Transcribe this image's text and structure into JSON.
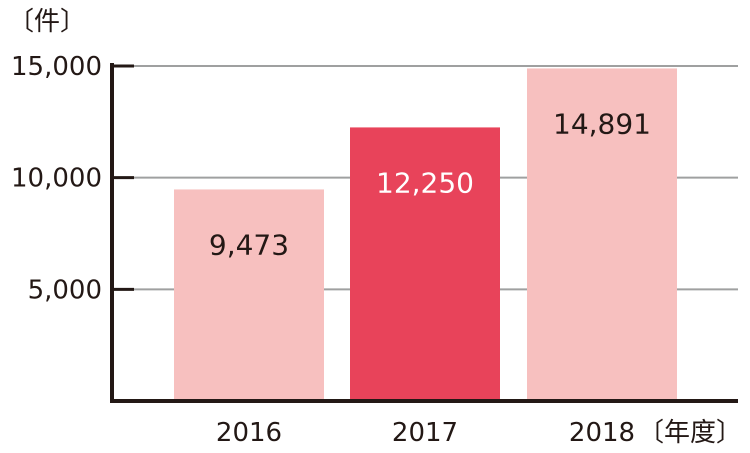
{
  "chart_data": {
    "type": "bar",
    "categories": [
      "2016",
      "2017",
      "2018"
    ],
    "values": [
      9473,
      12250,
      14891
    ],
    "value_labels": [
      "9,473",
      "12,250",
      "14,891"
    ],
    "y_ticks": [
      5000,
      10000,
      15000
    ],
    "y_tick_labels": [
      "5,000",
      "10,000",
      "15,000"
    ],
    "ylim": [
      0,
      15000
    ],
    "y_unit": "〔件〕",
    "x_unit": "〔年度〕",
    "grid": true,
    "highlight_index": 1,
    "colors": {
      "bar": "#f7c0bf",
      "bar_highlight": "#e8435a",
      "label": "#231815",
      "label_highlight": "#ffffff",
      "axis": "#231815",
      "grid": "#9fa0a0"
    }
  }
}
